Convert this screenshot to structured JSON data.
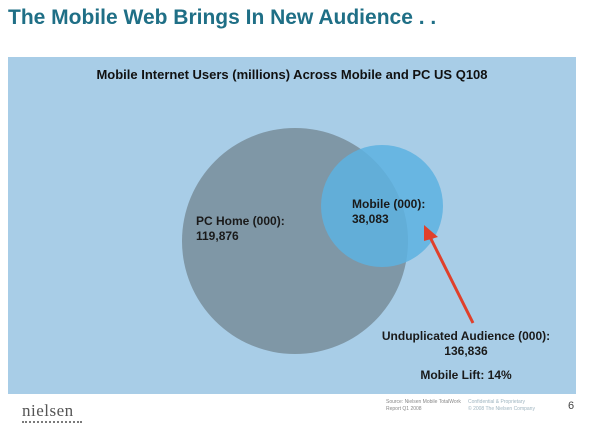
{
  "slide": {
    "title": "The Mobile Web Brings In New Audience . .",
    "page_number": "6"
  },
  "diagram": {
    "title": "Mobile Internet Users (millions) Across Mobile and PC US Q108",
    "pc_home": {
      "label": "PC Home (000):",
      "value": "119,876",
      "color": "#7f97a6"
    },
    "mobile": {
      "label": "Mobile (000):",
      "value": "38,083",
      "color": "#5db2e0"
    },
    "unduplicated": {
      "label": "Unduplicated Audience (000):",
      "value": "136,836"
    },
    "lift": "Mobile Lift: 14%",
    "background": "#a8cde7",
    "arrow_color": "#e0402b"
  },
  "footer": {
    "logo": "nielsen",
    "source": [
      "Source: Nielsen Mobile TotalWork",
      "Report Q1 2008"
    ],
    "confidential": [
      "Confidential & Proprietary",
      "© 2008 The Nielsen Company"
    ]
  }
}
